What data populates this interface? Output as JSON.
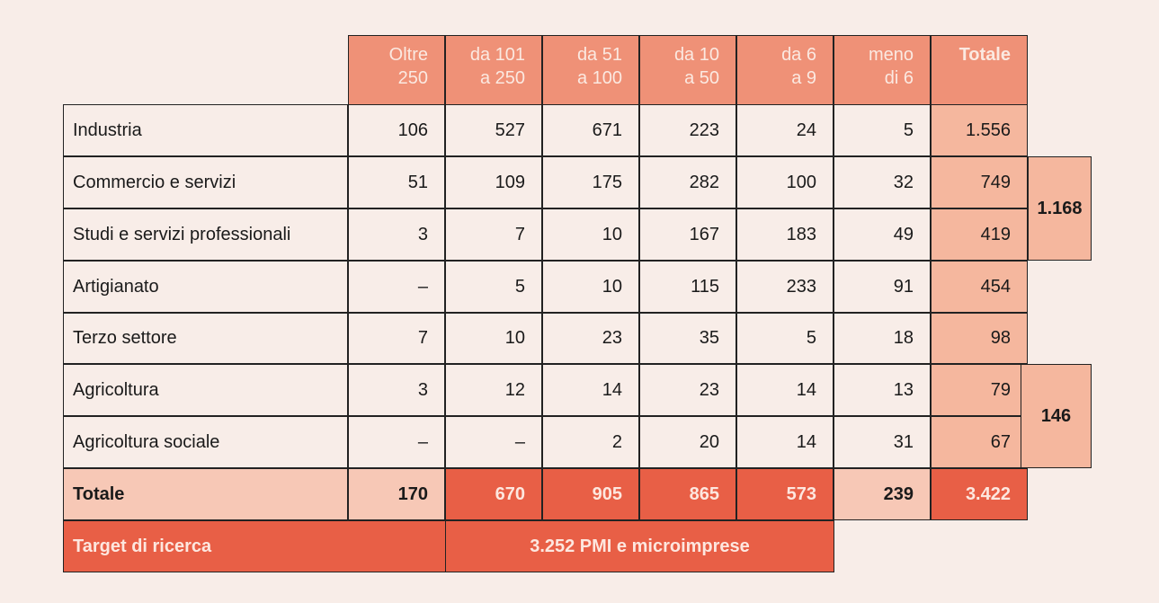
{
  "headers": [
    {
      "line1": "Oltre",
      "line2": "250"
    },
    {
      "line1": "da 101",
      "line2": "a 250"
    },
    {
      "line1": "da 51",
      "line2": "a 100"
    },
    {
      "line1": "da 10",
      "line2": "a 50"
    },
    {
      "line1": "da 6",
      "line2": "a 9"
    },
    {
      "line1": "meno",
      "line2": "di 6"
    },
    {
      "line1": "Totale",
      "line2": ""
    }
  ],
  "rows": [
    {
      "label": "Industria",
      "values": [
        "106",
        "527",
        "671",
        "223",
        "24",
        "5"
      ],
      "total": "1.556"
    },
    {
      "label": "Commercio e servizi",
      "values": [
        "51",
        "109",
        "175",
        "282",
        "100",
        "32"
      ],
      "total": "749"
    },
    {
      "label": "Studi e servizi professionali",
      "values": [
        "3",
        "7",
        "10",
        "167",
        "183",
        "49"
      ],
      "total": "419"
    },
    {
      "label": "Artigianato",
      "values": [
        "–",
        "5",
        "10",
        "115",
        "233",
        "91"
      ],
      "total": "454"
    },
    {
      "label": "Terzo settore",
      "values": [
        "7",
        "10",
        "23",
        "35",
        "5",
        "18"
      ],
      "total": "98"
    },
    {
      "label": "Agricoltura",
      "values": [
        "3",
        "12",
        "14",
        "23",
        "14",
        "13"
      ],
      "total": "79"
    },
    {
      "label": "Agricoltura sociale",
      "values": [
        "–",
        "–",
        "2",
        "20",
        "14",
        "31"
      ],
      "total": "67"
    }
  ],
  "totals_row": {
    "label": "Totale",
    "values": [
      "170",
      "670",
      "905",
      "865",
      "573",
      "239"
    ],
    "total": "3.422"
  },
  "groups": [
    {
      "value": "1.168"
    },
    {
      "value": "146"
    }
  ],
  "target_row": {
    "label": "Target di ricerca",
    "value": "3.252 PMI e microimprese"
  },
  "colors": {
    "background": "#f8ede8",
    "header": "#ef9177",
    "total_column": "#f5b79e",
    "highlight": "#e85f46",
    "light_total": "#f7c8b6"
  }
}
